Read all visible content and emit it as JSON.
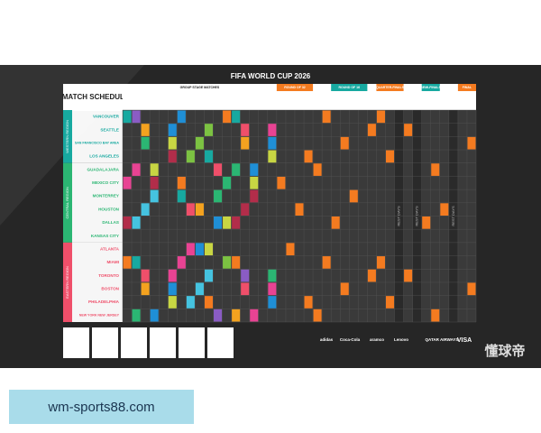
{
  "poster": {
    "title": "FIFA WORLD CUP 2026",
    "heading": "MATCH SCHEDULE",
    "stages": [
      "GROUP STAGE MATCHES",
      "ROUND OF 32",
      "ROUND OF 16",
      "QUARTER-FINALS",
      "SEMI-FINALS",
      "FINAL"
    ],
    "regions": [
      "WESTERN REGION",
      "CENTRAL REGION",
      "EASTERN REGION"
    ],
    "cities": [
      "VANCOUVER",
      "SEATTLE",
      "SAN FRANCISCO BAY AREA",
      "LOS ANGELES",
      "GUADALAJARA",
      "MEXICO CITY",
      "MONTERREY",
      "HOUSTON",
      "DALLAS",
      "KANSAS CITY",
      "ATLANTA",
      "MIAMI",
      "TORONTO",
      "BOSTON",
      "PHILADELPHIA",
      "NEW YORK NEW JERSEY"
    ],
    "rest": "REST DAYS",
    "sponsors": [
      "adidas",
      "Coca-Cola",
      "aramco",
      "Lenovo",
      "QATAR AIRWAYS",
      "VISA"
    ]
  },
  "watermark": "懂球帝",
  "footer": {
    "url": "wm-sports88.com"
  }
}
